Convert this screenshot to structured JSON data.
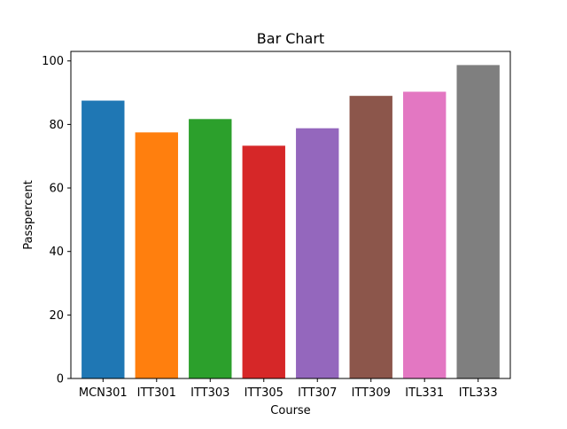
{
  "chart_data": {
    "type": "bar",
    "title": "Bar Chart",
    "xlabel": "Course",
    "ylabel": "Passpercent",
    "categories": [
      "MCN301",
      "ITT301",
      "ITT303",
      "ITT305",
      "ITT307",
      "ITT309",
      "ITL331",
      "ITL333"
    ],
    "values": [
      87.5,
      77.5,
      81.7,
      73.3,
      78.8,
      89.0,
      90.3,
      98.7
    ],
    "colors": [
      "#1f77b4",
      "#ff7f0e",
      "#2ca02c",
      "#d62728",
      "#9467bd",
      "#8c564b",
      "#e377c2",
      "#7f7f7f"
    ],
    "ylim": [
      0,
      103
    ],
    "yticks": [
      0,
      20,
      40,
      60,
      80,
      100
    ],
    "grid": false,
    "legend": false
  }
}
